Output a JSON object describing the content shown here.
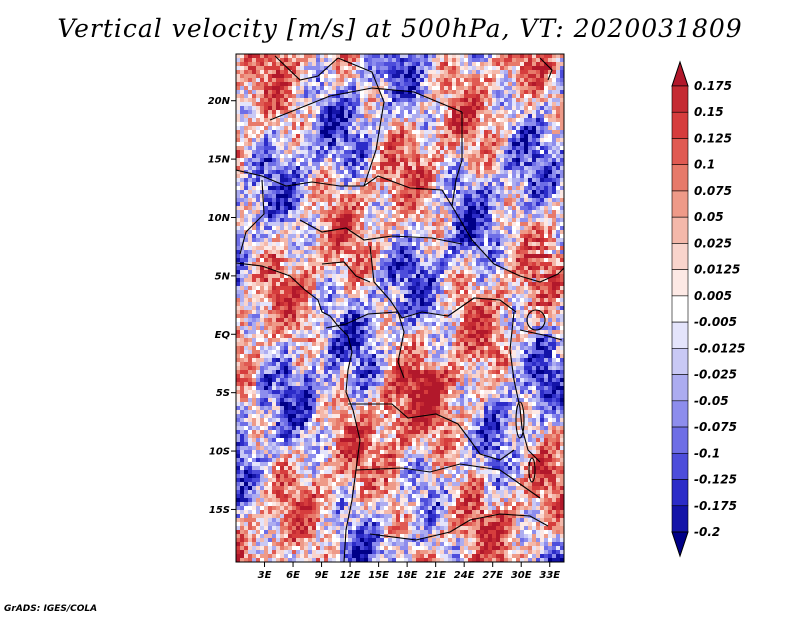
{
  "title": "Vertical velocity [m/s] at 500hPa, VT: 2020031809",
  "footer": "GrADS: IGES/COLA",
  "map": {
    "lat_labels": [
      "20N",
      "15N",
      "10N",
      "5N",
      "EQ",
      "5S",
      "10S",
      "15S"
    ],
    "lon_labels": [
      "3E",
      "6E",
      "9E",
      "12E",
      "15E",
      "18E",
      "21E",
      "24E",
      "27E",
      "30E",
      "33E"
    ],
    "lat_range": [
      -19.5,
      24
    ],
    "lon_range": [
      0,
      34.5
    ]
  },
  "colorbar": {
    "labels": [
      "0.175",
      "0.15",
      "0.125",
      "0.1",
      "0.075",
      "0.05",
      "0.025",
      "0.0125",
      "0.005",
      "-0.005",
      "-0.0125",
      "-0.025",
      "-0.05",
      "-0.075",
      "-0.1",
      "-0.125",
      "-0.175",
      "-0.2"
    ],
    "colors": [
      "#b2182b",
      "#c52b33",
      "#d63d3d",
      "#e05a52",
      "#e77a6a",
      "#ee9a88",
      "#f4b8aa",
      "#f9d4cc",
      "#fde9e5",
      "#ffffff",
      "#e4e4fb",
      "#c9c9f5",
      "#acacf0",
      "#8d8ded",
      "#6e6ee6",
      "#4d4ddb",
      "#2c2cc8",
      "#1414a8",
      "#000088"
    ]
  }
}
